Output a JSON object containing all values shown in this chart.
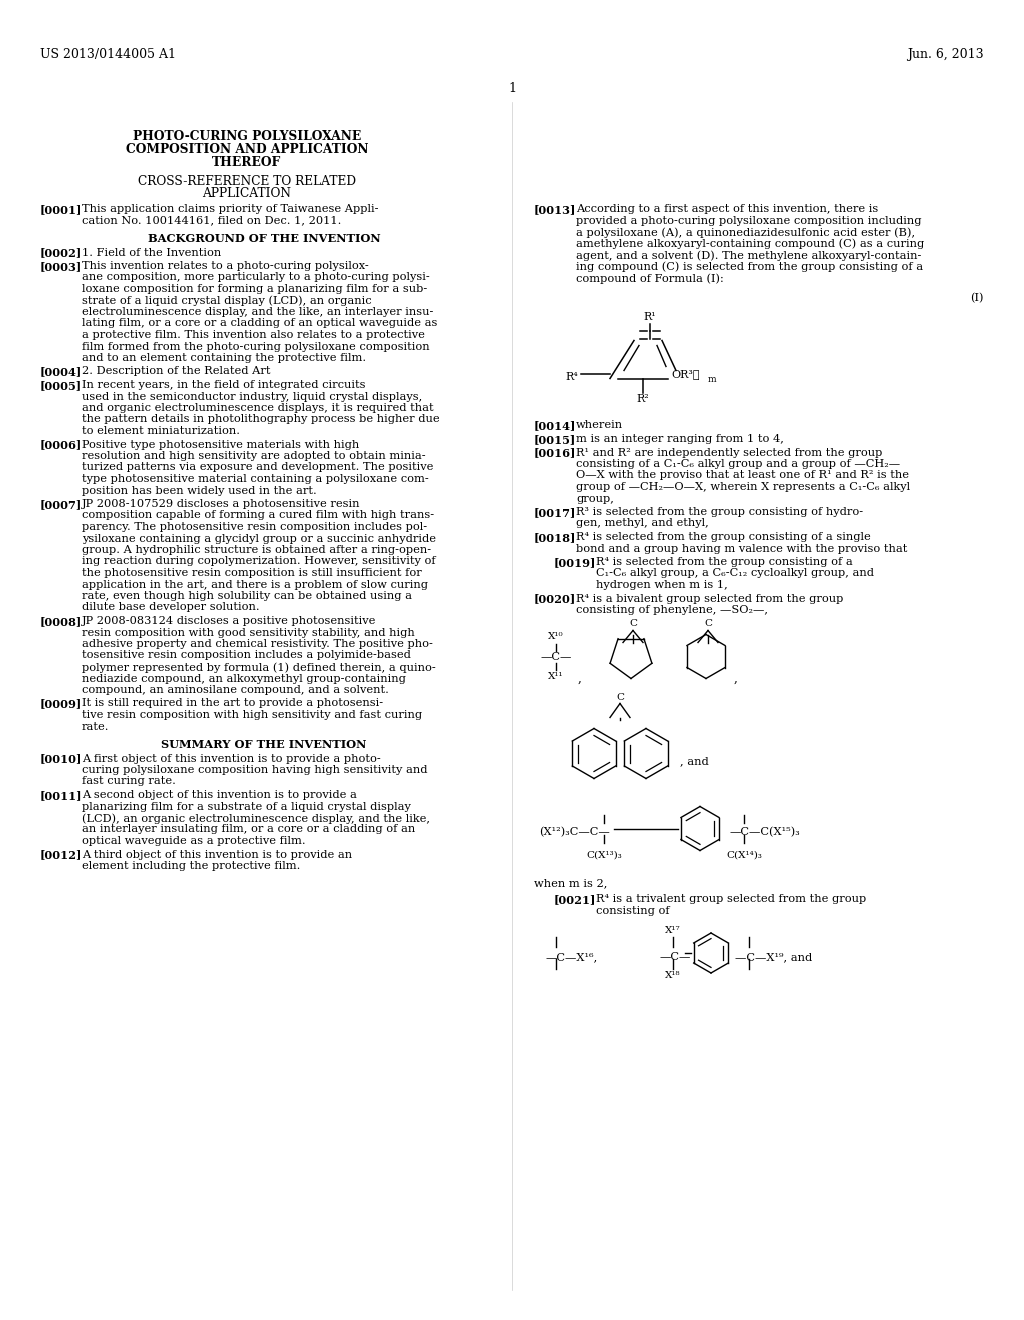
{
  "background_color": "#ffffff",
  "header_left": "US 2013/0144005 A1",
  "header_right": "Jun. 6, 2013",
  "page_number": "1"
}
